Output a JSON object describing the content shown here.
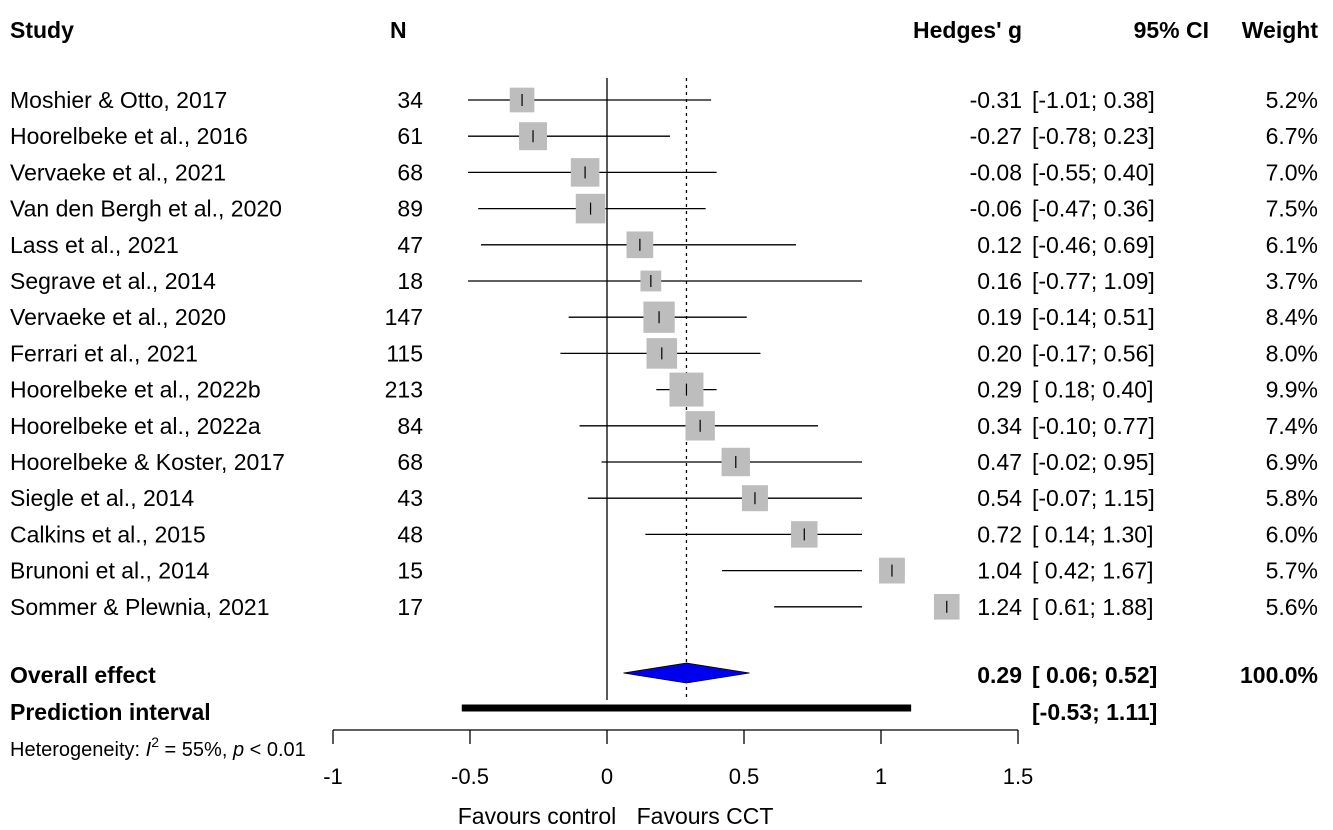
{
  "headers": {
    "study": "Study",
    "n": "N",
    "effect": "Hedges' g",
    "ci": "95% CI",
    "weight": "Weight"
  },
  "chart_data": {
    "type": "forest",
    "xlim": [
      -1,
      1.5
    ],
    "ticks": [
      "-1",
      "-0.5",
      "0",
      "0.5",
      "1",
      "1.5"
    ],
    "tick_values": [
      -1,
      -0.5,
      0,
      0.5,
      1,
      1.5
    ],
    "null_line": 0,
    "reference_line": 0.29,
    "studies": [
      {
        "study": "Moshier & Otto, 2017",
        "n": "34",
        "g": -0.31,
        "lo": -1.01,
        "hi": 0.38,
        "g_text": "-0.31",
        "ci_text": "[-1.01; 0.38]",
        "weight": 5.2,
        "weight_text": "5.2%"
      },
      {
        "study": "Hoorelbeke et al., 2016",
        "n": "61",
        "g": -0.27,
        "lo": -0.78,
        "hi": 0.23,
        "g_text": "-0.27",
        "ci_text": "[-0.78; 0.23]",
        "weight": 6.7,
        "weight_text": "6.7%"
      },
      {
        "study": "Vervaeke et al., 2021",
        "n": "68",
        "g": -0.08,
        "lo": -0.55,
        "hi": 0.4,
        "g_text": "-0.08",
        "ci_text": "[-0.55; 0.40]",
        "weight": 7.0,
        "weight_text": "7.0%"
      },
      {
        "study": "Van den Bergh et al., 2020",
        "n": "89",
        "g": -0.06,
        "lo": -0.47,
        "hi": 0.36,
        "g_text": "-0.06",
        "ci_text": "[-0.47; 0.36]",
        "weight": 7.5,
        "weight_text": "7.5%"
      },
      {
        "study": "Lass et al., 2021",
        "n": "47",
        "g": 0.12,
        "lo": -0.46,
        "hi": 0.69,
        "g_text": "0.12",
        "ci_text": "[-0.46; 0.69]",
        "weight": 6.1,
        "weight_text": "6.1%"
      },
      {
        "study": "Segrave et al., 2014",
        "n": "18",
        "g": 0.16,
        "lo": -0.77,
        "hi": 1.09,
        "g_text": "0.16",
        "ci_text": "[-0.77; 1.09]",
        "weight": 3.7,
        "weight_text": "3.7%"
      },
      {
        "study": "Vervaeke et al., 2020",
        "n": "147",
        "g": 0.19,
        "lo": -0.14,
        "hi": 0.51,
        "g_text": "0.19",
        "ci_text": "[-0.14; 0.51]",
        "weight": 8.4,
        "weight_text": "8.4%"
      },
      {
        "study": "Ferrari et al., 2021",
        "n": "115",
        "g": 0.2,
        "lo": -0.17,
        "hi": 0.56,
        "g_text": "0.20",
        "ci_text": "[-0.17; 0.56]",
        "weight": 8.0,
        "weight_text": "8.0%"
      },
      {
        "study": "Hoorelbeke et al., 2022b",
        "n": "213",
        "g": 0.29,
        "lo": 0.18,
        "hi": 0.4,
        "g_text": "0.29",
        "ci_text": "[ 0.18; 0.40]",
        "weight": 9.9,
        "weight_text": "9.9%"
      },
      {
        "study": "Hoorelbeke et al., 2022a",
        "n": "84",
        "g": 0.34,
        "lo": -0.1,
        "hi": 0.77,
        "g_text": "0.34",
        "ci_text": "[-0.10; 0.77]",
        "weight": 7.4,
        "weight_text": "7.4%"
      },
      {
        "study": "Hoorelbeke & Koster, 2017",
        "n": "68",
        "g": 0.47,
        "lo": -0.02,
        "hi": 0.95,
        "g_text": "0.47",
        "ci_text": "[-0.02; 0.95]",
        "weight": 6.9,
        "weight_text": "6.9%"
      },
      {
        "study": "Siegle et al., 2014",
        "n": "43",
        "g": 0.54,
        "lo": -0.07,
        "hi": 1.15,
        "g_text": "0.54",
        "ci_text": "[-0.07; 1.15]",
        "weight": 5.8,
        "weight_text": "5.8%"
      },
      {
        "study": "Calkins et al., 2015",
        "n": "48",
        "g": 0.72,
        "lo": 0.14,
        "hi": 1.3,
        "g_text": "0.72",
        "ci_text": "[ 0.14; 1.30]",
        "weight": 6.0,
        "weight_text": "6.0%"
      },
      {
        "study": "Brunoni et al., 2014",
        "n": "15",
        "g": 1.04,
        "lo": 0.42,
        "hi": 1.67,
        "g_text": "1.04",
        "ci_text": "[ 0.42; 1.67]",
        "weight": 5.7,
        "weight_text": "5.7%"
      },
      {
        "study": "Sommer & Plewnia, 2021",
        "n": "17",
        "g": 1.24,
        "lo": 0.61,
        "hi": 1.88,
        "g_text": "1.24",
        "ci_text": "[ 0.61; 1.88]",
        "weight": 5.6,
        "weight_text": "5.6%"
      }
    ],
    "overall": {
      "label": "Overall effect",
      "g": 0.29,
      "lo": 0.06,
      "hi": 0.52,
      "g_text": "0.29",
      "ci_text": "[ 0.06; 0.52]",
      "weight_text": "100.0%"
    },
    "prediction": {
      "label": "Prediction interval",
      "lo": -0.53,
      "hi": 1.11,
      "ci_text": "[-0.53; 1.11]"
    },
    "heterogeneity": {
      "prefix": "Heterogeneity: ",
      "i2_symbol": "I",
      "i2_sup": "2",
      "i2_value": " = 55%, ",
      "p_symbol": "p",
      "p_value": " < 0.01"
    },
    "xlabel_left": "Favours control",
    "xlabel_right": "Favours CCT",
    "colors": {
      "box": "#bdbdbd",
      "diamond": "#0000ee",
      "line": "#000000"
    }
  }
}
